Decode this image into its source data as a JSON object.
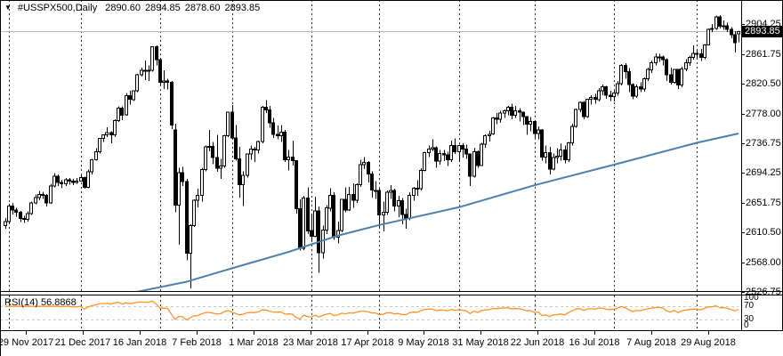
{
  "header": {
    "marker": "▼",
    "symbol_period": "#USSPX500,Daily",
    "open": "2890.60",
    "high": "2894.85",
    "low": "2878.60",
    "close": "2893.85"
  },
  "price_axis": {
    "labels": [
      "2904.25",
      "2861.75",
      "2820.50",
      "2778.00",
      "2736.75",
      "2694.25",
      "2651.75",
      "2610.50",
      "2568.00",
      "2526.75"
    ],
    "current_price_label": "2893.85"
  },
  "time_axis": {
    "labels": [
      "29 Nov 2017",
      "21 Dec 2017",
      "16 Jan 2018",
      "7 Feb 2018",
      "1 Mar 2018",
      "23 Mar 2018",
      "17 Apr 2018",
      "9 May 2018",
      "31 May 2018",
      "22 Jun 2018",
      "16 Jul 2018",
      "7 Aug 2018",
      "29 Aug 2018"
    ]
  },
  "rsi_panel": {
    "label_name": "RSI(14)",
    "label_value": "56.8868",
    "scale_labels": [
      "100",
      "70",
      "30",
      "0"
    ],
    "scale_values": [
      100,
      70,
      30,
      0
    ],
    "levels": [
      70,
      30
    ]
  },
  "colors": {
    "bg": "#ffffff",
    "frame": "#000000",
    "grid": "#2a2a2a",
    "candle_outline": "#000000",
    "bull_fill": "#ffffff",
    "bear_fill": "#000000",
    "ma": "#4a7fad",
    "rsi": "#ff9224",
    "rsi_levels": "#c8c8c8",
    "price_line": "#b8b8b8",
    "tag_bg": "#000000",
    "tag_fg": "#ffffff"
  },
  "chart_data": {
    "type": "candlestick",
    "title": "#USSPX500,Daily 2890.60 2894.85 2878.60 2893.85",
    "symbol": "#USSPX500",
    "timeframe": "Daily",
    "last_price": 2893.85,
    "price_axis_ticks": [
      2904.25,
      2861.75,
      2820.5,
      2778.0,
      2736.75,
      2694.25,
      2651.75,
      2610.5,
      2568.0,
      2526.75
    ],
    "x_range": [
      "29 Nov 2017",
      "7 Sep 2018"
    ],
    "grid_bar_indices": [
      1,
      20,
      41,
      60,
      81,
      99,
      120,
      140,
      161,
      183
    ],
    "candles": [
      [
        2620,
        2631,
        2616,
        2626
      ],
      [
        2626,
        2651,
        2624,
        2648
      ],
      [
        2648,
        2652,
        2636,
        2642
      ],
      [
        2642,
        2645,
        2633,
        2639
      ],
      [
        2639,
        2641,
        2625,
        2630
      ],
      [
        2630,
        2634,
        2624,
        2629
      ],
      [
        2629,
        2640,
        2626,
        2637
      ],
      [
        2637,
        2654,
        2635,
        2652
      ],
      [
        2652,
        2664,
        2650,
        2660
      ],
      [
        2660,
        2669,
        2656,
        2664
      ],
      [
        2664,
        2668,
        2658,
        2663
      ],
      [
        2663,
        2665,
        2647,
        2652
      ],
      [
        2652,
        2679,
        2651,
        2676
      ],
      [
        2676,
        2694,
        2674,
        2690
      ],
      [
        2690,
        2692,
        2676,
        2681
      ],
      [
        2681,
        2685,
        2673,
        2679
      ],
      [
        2679,
        2687,
        2676,
        2685
      ],
      [
        2685,
        2687,
        2678,
        2683
      ],
      [
        2683,
        2686,
        2677,
        2681
      ],
      [
        2681,
        2687,
        2679,
        2683
      ],
      [
        2683,
        2691,
        2682,
        2688
      ],
      [
        2688,
        2689,
        2672,
        2674
      ],
      [
        2674,
        2699,
        2673,
        2696
      ],
      [
        2696,
        2714,
        2692,
        2713
      ],
      [
        2713,
        2729,
        2712,
        2724
      ],
      [
        2724,
        2744,
        2722,
        2743
      ],
      [
        2743,
        2749,
        2738,
        2748
      ],
      [
        2748,
        2759,
        2745,
        2751
      ],
      [
        2751,
        2753,
        2736,
        2748
      ],
      [
        2748,
        2770,
        2745,
        2768
      ],
      [
        2768,
        2788,
        2766,
        2786
      ],
      [
        2786,
        2788,
        2769,
        2776
      ],
      [
        2776,
        2807,
        2775,
        2803
      ],
      [
        2803,
        2810,
        2791,
        2798
      ],
      [
        2798,
        2811,
        2796,
        2810
      ],
      [
        2810,
        2834,
        2808,
        2833
      ],
      [
        2833,
        2843,
        2830,
        2839
      ],
      [
        2839,
        2853,
        2825,
        2838
      ],
      [
        2838,
        2846,
        2824,
        2839
      ],
      [
        2839,
        2873,
        2837,
        2872
      ],
      [
        2872,
        2874,
        2846,
        2854
      ],
      [
        2854,
        2856,
        2818,
        2822
      ],
      [
        2822,
        2839,
        2813,
        2824
      ],
      [
        2824,
        2827,
        2812,
        2822
      ],
      [
        2822,
        2824,
        2756,
        2762
      ],
      [
        2755,
        2764,
        2639,
        2649
      ],
      [
        2649,
        2702,
        2593,
        2695
      ],
      [
        2695,
        2703,
        2676,
        2682
      ],
      [
        2682,
        2686,
        2571,
        2581
      ],
      [
        2581,
        2622,
        2532,
        2620
      ],
      [
        2620,
        2657,
        2618,
        2656
      ],
      [
        2656,
        2672,
        2646,
        2663
      ],
      [
        2663,
        2702,
        2654,
        2699
      ],
      [
        2699,
        2733,
        2697,
        2731
      ],
      [
        2731,
        2755,
        2725,
        2732
      ],
      [
        2732,
        2738,
        2707,
        2716
      ],
      [
        2716,
        2748,
        2696,
        2701
      ],
      [
        2701,
        2714,
        2686,
        2704
      ],
      [
        2704,
        2748,
        2702,
        2747
      ],
      [
        2747,
        2781,
        2745,
        2780
      ],
      [
        2780,
        2790,
        2742,
        2744
      ],
      [
        2744,
        2762,
        2712,
        2714
      ],
      [
        2714,
        2731,
        2660,
        2678
      ],
      [
        2678,
        2697,
        2648,
        2691
      ],
      [
        2691,
        2722,
        2688,
        2721
      ],
      [
        2721,
        2733,
        2713,
        2728
      ],
      [
        2728,
        2731,
        2710,
        2727
      ],
      [
        2727,
        2740,
        2722,
        2739
      ],
      [
        2739,
        2789,
        2736,
        2787
      ],
      [
        2787,
        2797,
        2779,
        2783
      ],
      [
        2783,
        2789,
        2758,
        2765
      ],
      [
        2765,
        2772,
        2744,
        2749
      ],
      [
        2749,
        2761,
        2742,
        2747
      ],
      [
        2747,
        2762,
        2738,
        2752
      ],
      [
        2752,
        2755,
        2710,
        2713
      ],
      [
        2713,
        2727,
        2698,
        2717
      ],
      [
        2717,
        2740,
        2705,
        2712
      ],
      [
        2712,
        2712,
        2637,
        2644
      ],
      [
        2644,
        2657,
        2585,
        2588
      ],
      [
        2588,
        2662,
        2586,
        2659
      ],
      [
        2659,
        2674,
        2608,
        2613
      ],
      [
        2613,
        2637,
        2598,
        2605
      ],
      [
        2605,
        2661,
        2604,
        2641
      ],
      [
        2641,
        2647,
        2554,
        2582
      ],
      [
        2582,
        2620,
        2574,
        2614
      ],
      [
        2614,
        2649,
        2608,
        2645
      ],
      [
        2645,
        2673,
        2640,
        2663
      ],
      [
        2663,
        2667,
        2600,
        2604
      ],
      [
        2604,
        2626,
        2595,
        2613
      ],
      [
        2613,
        2658,
        2611,
        2657
      ],
      [
        2657,
        2674,
        2639,
        2642
      ],
      [
        2642,
        2675,
        2641,
        2664
      ],
      [
        2664,
        2680,
        2645,
        2656
      ],
      [
        2656,
        2680,
        2652,
        2678
      ],
      [
        2678,
        2713,
        2675,
        2706
      ],
      [
        2706,
        2717,
        2700,
        2709
      ],
      [
        2709,
        2711,
        2681,
        2693
      ],
      [
        2693,
        2697,
        2660,
        2670
      ],
      [
        2670,
        2683,
        2658,
        2670
      ],
      [
        2670,
        2672,
        2617,
        2635
      ],
      [
        2635,
        2654,
        2612,
        2639
      ],
      [
        2639,
        2670,
        2635,
        2667
      ],
      [
        2667,
        2677,
        2658,
        2670
      ],
      [
        2670,
        2672,
        2640,
        2648
      ],
      [
        2648,
        2662,
        2632,
        2655
      ],
      [
        2655,
        2659,
        2622,
        2636
      ],
      [
        2636,
        2644,
        2616,
        2630
      ],
      [
        2630,
        2667,
        2628,
        2663
      ],
      [
        2663,
        2675,
        2655,
        2673
      ],
      [
        2673,
        2684,
        2662,
        2672
      ],
      [
        2672,
        2701,
        2670,
        2698
      ],
      [
        2698,
        2724,
        2697,
        2723
      ],
      [
        2723,
        2733,
        2717,
        2728
      ],
      [
        2728,
        2742,
        2725,
        2730
      ],
      [
        2730,
        2732,
        2702,
        2711
      ],
      [
        2711,
        2727,
        2706,
        2722
      ],
      [
        2722,
        2727,
        2711,
        2720
      ],
      [
        2720,
        2724,
        2704,
        2713
      ],
      [
        2713,
        2740,
        2710,
        2733
      ],
      [
        2733,
        2743,
        2721,
        2724
      ],
      [
        2724,
        2734,
        2710,
        2733
      ],
      [
        2733,
        2736,
        2716,
        2728
      ],
      [
        2728,
        2734,
        2714,
        2721
      ],
      [
        2721,
        2722,
        2676,
        2690
      ],
      [
        2690,
        2730,
        2688,
        2724
      ],
      [
        2724,
        2726,
        2702,
        2705
      ],
      [
        2705,
        2737,
        2704,
        2735
      ],
      [
        2735,
        2749,
        2730,
        2747
      ],
      [
        2747,
        2754,
        2739,
        2749
      ],
      [
        2749,
        2773,
        2748,
        2772
      ],
      [
        2772,
        2779,
        2763,
        2770
      ],
      [
        2770,
        2782,
        2765,
        2779
      ],
      [
        2779,
        2784,
        2772,
        2782
      ],
      [
        2782,
        2789,
        2776,
        2787
      ],
      [
        2787,
        2792,
        2770,
        2776
      ],
      [
        2776,
        2789,
        2772,
        2782
      ],
      [
        2782,
        2786,
        2767,
        2780
      ],
      [
        2780,
        2781,
        2762,
        2774
      ],
      [
        2774,
        2774,
        2748,
        2763
      ],
      [
        2763,
        2773,
        2753,
        2767
      ],
      [
        2767,
        2769,
        2744,
        2750
      ],
      [
        2750,
        2760,
        2742,
        2755
      ],
      [
        2755,
        2756,
        2712,
        2717
      ],
      [
        2717,
        2733,
        2708,
        2723
      ],
      [
        2723,
        2731,
        2692,
        2700
      ],
      [
        2700,
        2722,
        2698,
        2716
      ],
      [
        2716,
        2729,
        2708,
        2718
      ],
      [
        2718,
        2736,
        2712,
        2727
      ],
      [
        2727,
        2733,
        2708,
        2713
      ],
      [
        2713,
        2738,
        2710,
        2737
      ],
      [
        2737,
        2764,
        2733,
        2760
      ],
      [
        2760,
        2785,
        2758,
        2784
      ],
      [
        2784,
        2795,
        2780,
        2794
      ],
      [
        2794,
        2796,
        2770,
        2774
      ],
      [
        2774,
        2799,
        2772,
        2798
      ],
      [
        2798,
        2804,
        2791,
        2801
      ],
      [
        2801,
        2806,
        2792,
        2798
      ],
      [
        2798,
        2814,
        2795,
        2810
      ],
      [
        2810,
        2819,
        2804,
        2816
      ],
      [
        2816,
        2817,
        2799,
        2804
      ],
      [
        2804,
        2810,
        2796,
        2802
      ],
      [
        2802,
        2810,
        2795,
        2807
      ],
      [
        2807,
        2824,
        2803,
        2820
      ],
      [
        2820,
        2848,
        2818,
        2846
      ],
      [
        2846,
        2849,
        2827,
        2837
      ],
      [
        2837,
        2842,
        2808,
        2819
      ],
      [
        2819,
        2821,
        2798,
        2803
      ],
      [
        2803,
        2819,
        2800,
        2816
      ],
      [
        2816,
        2822,
        2808,
        2813
      ],
      [
        2813,
        2829,
        2809,
        2827
      ],
      [
        2827,
        2843,
        2824,
        2840
      ],
      [
        2840,
        2853,
        2835,
        2850
      ],
      [
        2850,
        2863,
        2846,
        2858
      ],
      [
        2858,
        2862,
        2851,
        2858
      ],
      [
        2858,
        2860,
        2846,
        2854
      ],
      [
        2854,
        2856,
        2824,
        2833
      ],
      [
        2833,
        2843,
        2819,
        2822
      ],
      [
        2822,
        2841,
        2820,
        2840
      ],
      [
        2840,
        2841,
        2813,
        2818
      ],
      [
        2818,
        2844,
        2815,
        2841
      ],
      [
        2841,
        2855,
        2838,
        2850
      ],
      [
        2850,
        2860,
        2845,
        2857
      ],
      [
        2857,
        2874,
        2854,
        2863
      ],
      [
        2863,
        2867,
        2856,
        2862
      ],
      [
        2862,
        2869,
        2852,
        2857
      ],
      [
        2857,
        2876,
        2855,
        2875
      ],
      [
        2875,
        2898,
        2874,
        2897
      ],
      [
        2897,
        2904,
        2893,
        2898
      ],
      [
        2898,
        2916,
        2896,
        2914
      ],
      [
        2914,
        2917,
        2898,
        2901
      ],
      [
        2901,
        2909,
        2896,
        2902
      ],
      [
        2902,
        2906,
        2893,
        2897
      ],
      [
        2897,
        2900,
        2884,
        2889
      ],
      [
        2889,
        2894,
        2864,
        2878
      ],
      [
        2890.6,
        2894.85,
        2878.6,
        2893.85
      ]
    ],
    "ma": {
      "name": "moving-average",
      "anchors": [
        [
          35,
          2527
        ],
        [
          48,
          2541
        ],
        [
          60,
          2560
        ],
        [
          75,
          2583
        ],
        [
          88,
          2606
        ],
        [
          99,
          2621
        ],
        [
          120,
          2646
        ],
        [
          140,
          2677
        ],
        [
          161,
          2706
        ],
        [
          183,
          2737
        ],
        [
          194,
          2750
        ]
      ]
    },
    "indicator": {
      "name": "RSI",
      "period": 14,
      "last_value": 56.8868,
      "range": [
        0,
        100
      ],
      "levels": [
        70,
        30
      ]
    }
  }
}
